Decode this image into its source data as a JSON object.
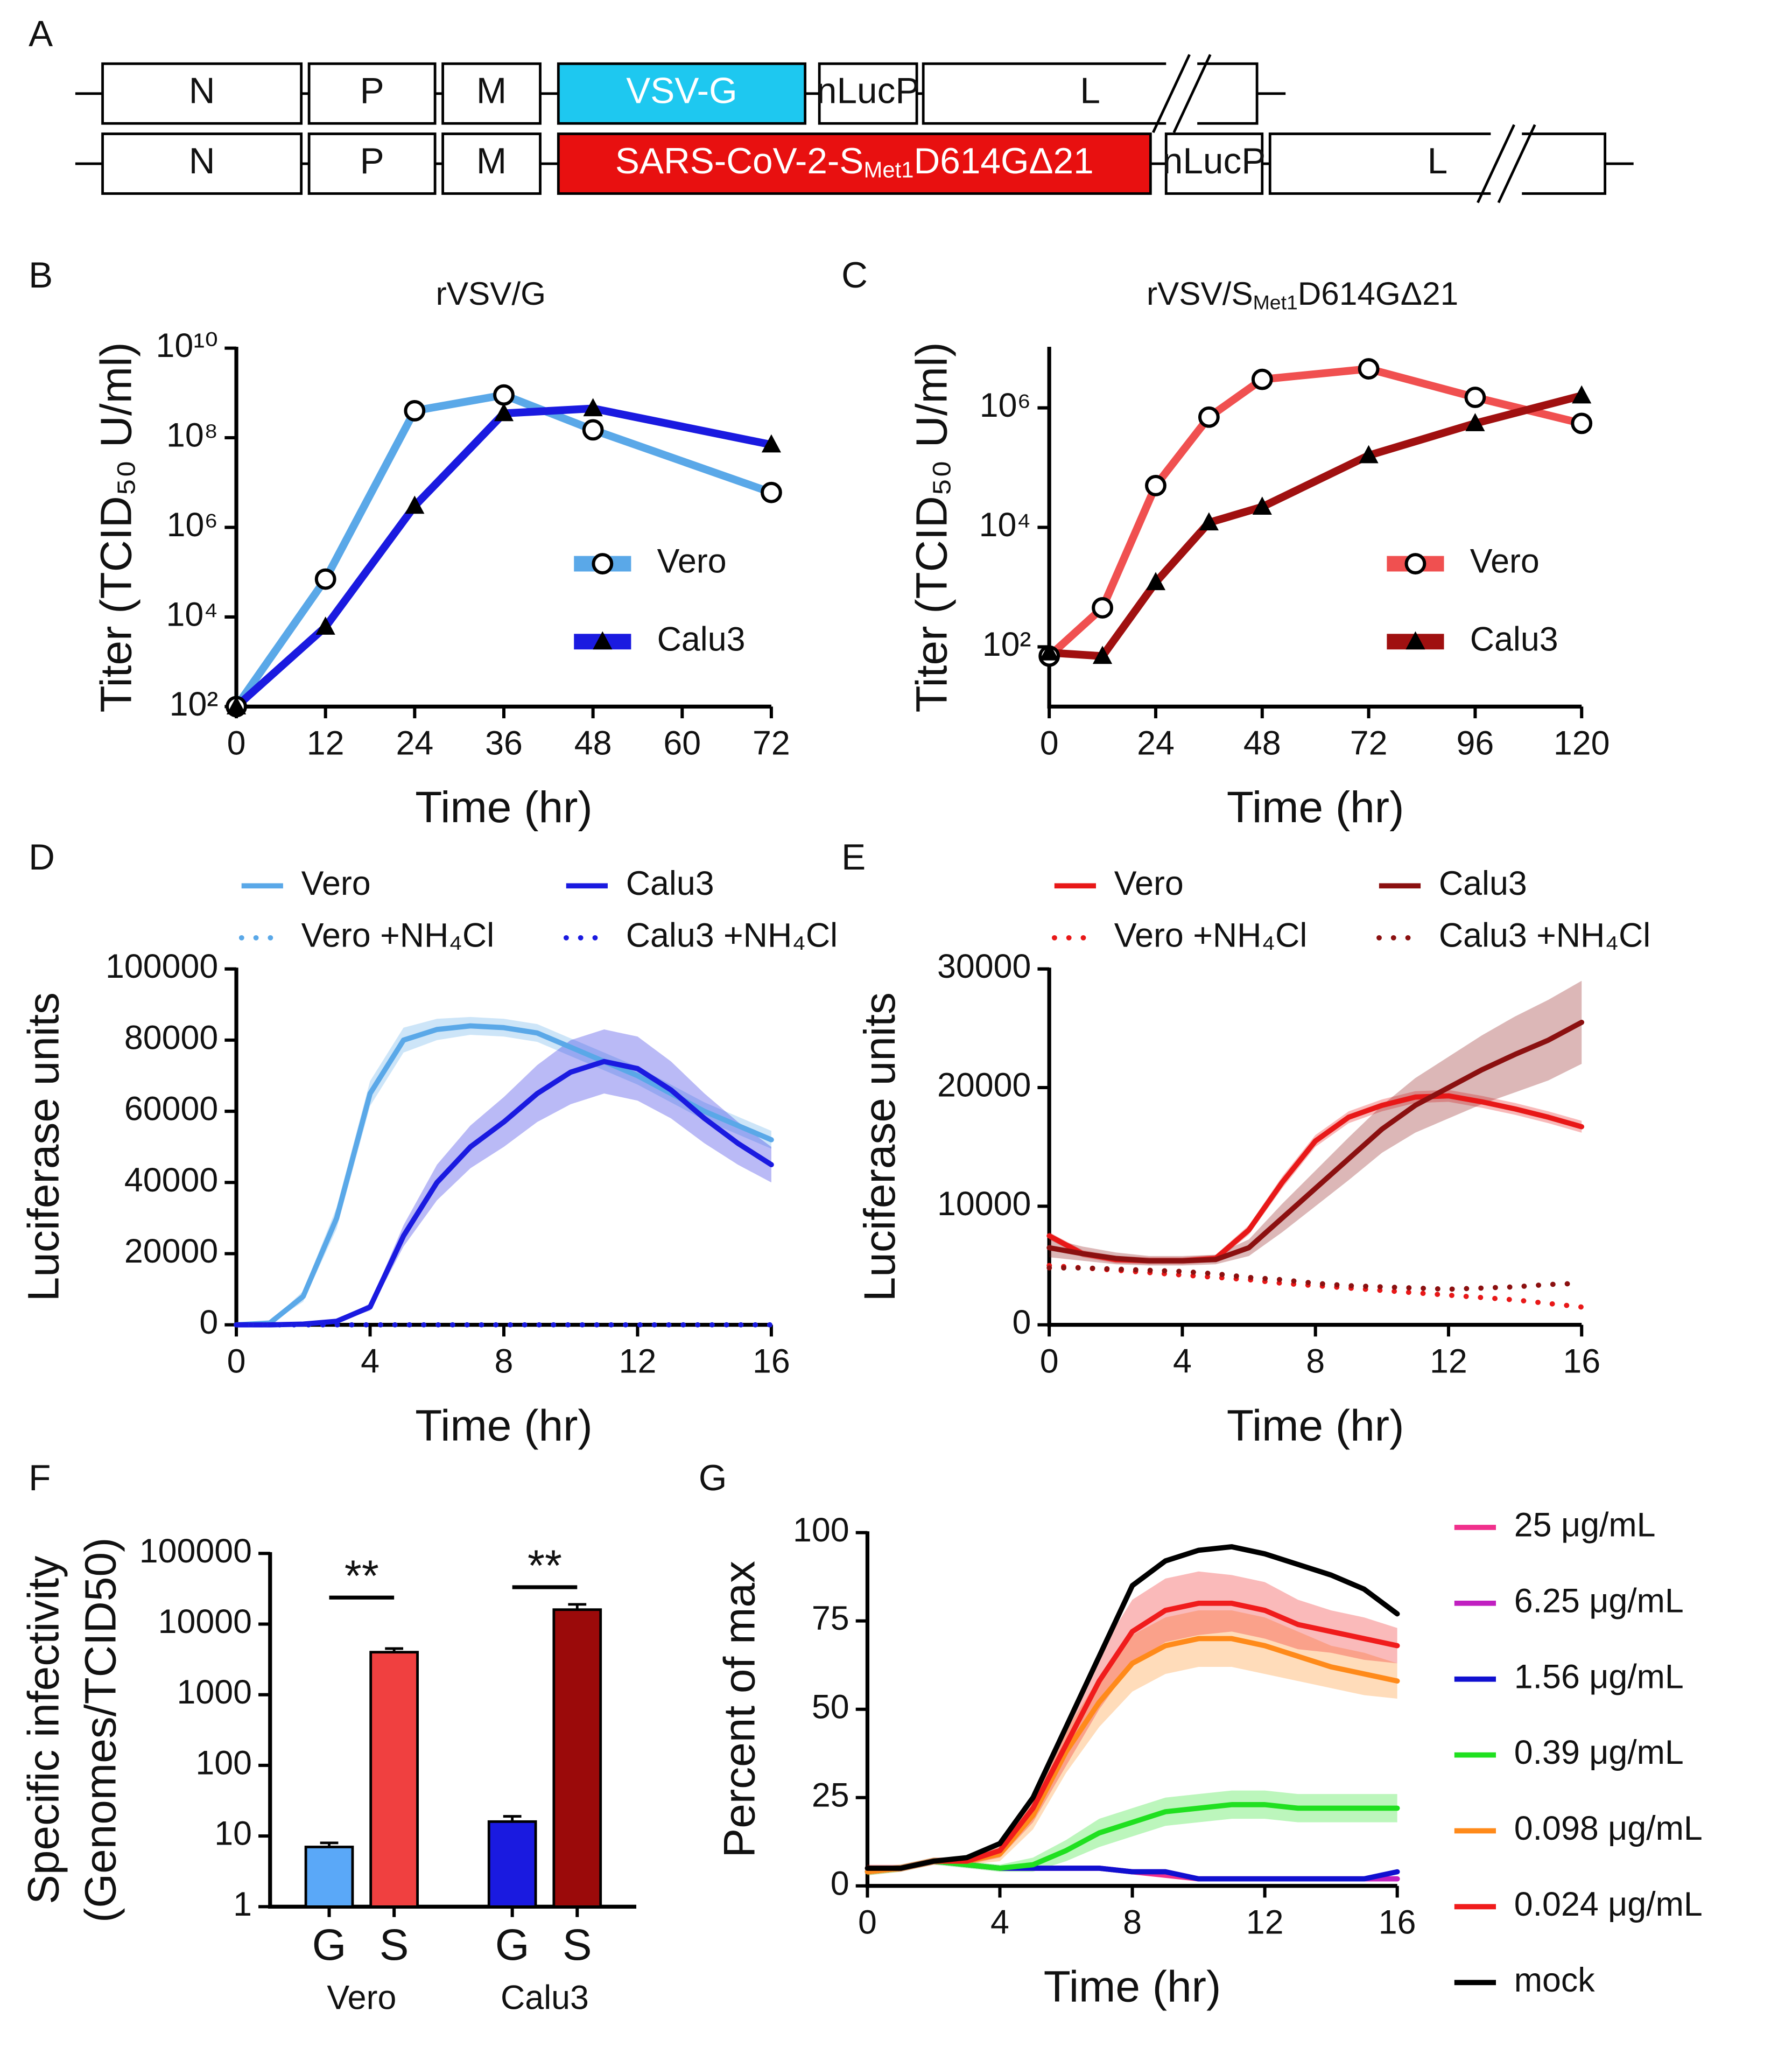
{
  "panel_a": {
    "label": "A",
    "rows": [
      {
        "genes": [
          {
            "text": "N"
          },
          {
            "text": "P"
          },
          {
            "text": "M"
          },
          {
            "text": "VSV-G"
          },
          {
            "text": "nLucP"
          },
          {
            "text": "L"
          }
        ]
      },
      {
        "genes": [
          {
            "text": "N"
          },
          {
            "text": "P"
          },
          {
            "text": "M"
          },
          {
            "runs": [
              {
                "text": "SARS-CoV-2-S"
              },
              {
                "text": "Met1",
                "sub": true
              },
              {
                "text": "D614GΔ21"
              }
            ]
          },
          {
            "text": "nLucP"
          },
          {
            "text": "L"
          }
        ]
      }
    ]
  },
  "chart_data": [
    {
      "type": "line",
      "label": "B",
      "title": "rVSV/G",
      "xlabel": "Time (hr)",
      "ylabel": "Titer (TCID₅₀ U/ml)",
      "log_scale": true,
      "legend": "center-right",
      "grid": false,
      "x": [
        0,
        12,
        24,
        36,
        48,
        72
      ],
      "xlim": [
        0,
        72
      ],
      "xticks": [
        0,
        12,
        24,
        36,
        48,
        60,
        72
      ],
      "ylim": [
        100,
        10000000000
      ],
      "yticks": [
        {
          "value": 100,
          "label": "10²"
        },
        {
          "value": 10000,
          "label": "10⁴"
        },
        {
          "value": 1000000,
          "label": "10⁶"
        },
        {
          "value": 100000000,
          "label": "10⁸"
        },
        {
          "value": 10000000000,
          "label": "10¹⁰"
        }
      ],
      "series": [
        {
          "name": "Vero",
          "color": "#5aa8e8",
          "marker": "open-circle",
          "values": [
            100,
            70000,
            400000000,
            900000000,
            150000000,
            6000000
          ]
        },
        {
          "name": "Calu3",
          "color": "#1a1ae0",
          "marker": "triangle",
          "values": [
            100,
            6000,
            3000000,
            350000000,
            450000000,
            70000000
          ]
        }
      ]
    },
    {
      "type": "line",
      "label": "C",
      "title": [
        {
          "text": "rVSV/S"
        },
        {
          "text": "Met1",
          "sub": true
        },
        {
          "text": "D614GΔ21"
        }
      ],
      "xlabel": "Time (hr)",
      "ylabel": "Titer (TCID₅₀ U/ml)",
      "log_scale": true,
      "legend": "center-right",
      "grid": false,
      "x": [
        0,
        12,
        24,
        36,
        48,
        72,
        96,
        120
      ],
      "xlim": [
        0,
        120
      ],
      "xticks": [
        0,
        24,
        48,
        72,
        96,
        120
      ],
      "ylim": [
        10,
        10000000
      ],
      "yticks": [
        {
          "value": 100,
          "label": "10²"
        },
        {
          "value": 10000,
          "label": "10⁴"
        },
        {
          "value": 1000000,
          "label": "10⁶"
        }
      ],
      "series": [
        {
          "name": "Vero",
          "color": "#f05050",
          "marker": "open-circle",
          "values": [
            70,
            450,
            50000,
            700000,
            3000000,
            4500000,
            1500000,
            550000
          ]
        },
        {
          "name": "Calu3",
          "color": "#a01010",
          "marker": "triangle",
          "values": [
            80,
            70,
            1200,
            12000,
            22000,
            160000,
            550000,
            1600000
          ]
        }
      ]
    },
    {
      "type": "line",
      "label": "D",
      "xlabel": "Time (hr)",
      "ylabel": "Luciferase units",
      "log_scale": false,
      "legend": "top",
      "grid": false,
      "x": [
        0,
        1,
        2,
        3,
        4,
        5,
        6,
        7,
        8,
        9,
        10,
        11,
        12,
        13,
        14,
        15,
        16
      ],
      "xlim": [
        0,
        16
      ],
      "xticks": [
        0,
        4,
        8,
        12,
        16
      ],
      "ylim": [
        0,
        100000
      ],
      "yticks": [
        0,
        20000,
        40000,
        60000,
        80000,
        100000
      ],
      "series": [
        {
          "name": "Vero",
          "color": "#5aa8e8",
          "values": [
            0,
            500,
            8000,
            30000,
            65000,
            80000,
            83000,
            84000,
            83500,
            82000,
            78000,
            74000,
            70000,
            65000,
            60000,
            56000,
            52000
          ],
          "errors": [
            0,
            200,
            1500,
            3000,
            3500,
            3500,
            3000,
            2500,
            2500,
            2500,
            2500,
            2500,
            2500,
            2500,
            2500,
            2500,
            2500
          ]
        },
        {
          "name": "Calu3",
          "color": "#1a1ae0",
          "values": [
            0,
            0,
            200,
            1000,
            5000,
            25000,
            40000,
            50000,
            57000,
            65000,
            71000,
            74000,
            72000,
            66000,
            58000,
            51000,
            45000
          ],
          "errors": [
            0,
            0,
            100,
            300,
            1000,
            3000,
            5000,
            6000,
            7000,
            8000,
            9000,
            9000,
            9000,
            8000,
            7000,
            6000,
            5000
          ]
        },
        {
          "name": "Vero +NH₄Cl",
          "color": "#5aa8e8",
          "dash": "dotted",
          "values": [
            0,
            0,
            0,
            0,
            0,
            0,
            0,
            0,
            0,
            0,
            0,
            0,
            0,
            0,
            0,
            0,
            0
          ]
        },
        {
          "name": "Calu3 +NH₄Cl",
          "color": "#1a1ae0",
          "dash": "dotted",
          "values": [
            0,
            0,
            0,
            0,
            0,
            0,
            0,
            0,
            0,
            0,
            0,
            0,
            0,
            0,
            0,
            0,
            0
          ]
        }
      ]
    },
    {
      "type": "line",
      "label": "E",
      "xlabel": "Time (hr)",
      "ylabel": "Luciferase units",
      "log_scale": false,
      "legend": "top",
      "grid": false,
      "x": [
        0,
        1,
        2,
        3,
        4,
        5,
        6,
        7,
        8,
        9,
        10,
        11,
        12,
        13,
        14,
        15,
        16
      ],
      "xlim": [
        0,
        16
      ],
      "xticks": [
        0,
        4,
        8,
        12,
        16
      ],
      "ylim": [
        0,
        30000
      ],
      "yticks": [
        0,
        10000,
        20000,
        30000
      ],
      "series": [
        {
          "name": "Vero",
          "color": "#e81818",
          "values": [
            7500,
            6000,
            5500,
            5400,
            5400,
            5600,
            8000,
            12000,
            15500,
            17500,
            18500,
            19200,
            19300,
            18800,
            18200,
            17500,
            16700
          ],
          "errors": [
            300,
            300,
            300,
            300,
            300,
            300,
            400,
            500,
            500,
            500,
            500,
            500,
            500,
            500,
            500,
            500,
            500
          ]
        },
        {
          "name": "Calu3",
          "color": "#8b1010",
          "values": [
            6500,
            6000,
            5600,
            5400,
            5400,
            5500,
            6500,
            9000,
            11500,
            14000,
            16500,
            18500,
            20000,
            21500,
            22800,
            24000,
            25500
          ],
          "errors": [
            800,
            600,
            500,
            400,
            400,
            400,
            700,
            1200,
            1500,
            1800,
            2000,
            2300,
            2600,
            2900,
            3200,
            3400,
            3500
          ]
        },
        {
          "name": "Vero +NH₄Cl",
          "color": "#e81818",
          "dash": "dotted",
          "values": [
            5000,
            4800,
            4600,
            4400,
            4200,
            4000,
            3800,
            3500,
            3300,
            3100,
            2900,
            2700,
            2500,
            2300,
            2100,
            1800,
            1500
          ]
        },
        {
          "name": "Calu3 +NH₄Cl",
          "color": "#8b1010",
          "dash": "dotted",
          "values": [
            4800,
            4800,
            4700,
            4600,
            4500,
            4300,
            4000,
            3800,
            3500,
            3300,
            3200,
            3100,
            3000,
            3100,
            3200,
            3400,
            3500
          ]
        }
      ]
    },
    {
      "type": "bar",
      "label": "F",
      "ylabel": [
        "Specific infectivity",
        "(Genomes/TCID50)"
      ],
      "log_scale": true,
      "categories": [
        "G",
        "S",
        "G",
        "S"
      ],
      "groups": [
        "Vero",
        "Calu3"
      ],
      "annotations": [
        "**",
        "**"
      ],
      "values": [
        7,
        4000,
        16,
        16000
      ],
      "errors": [
        1,
        500,
        3,
        3000
      ],
      "colors": [
        "#5aa8f8",
        "#f04040",
        "#1a1ae0",
        "#9b0a0a"
      ],
      "ylim": [
        1,
        100000
      ],
      "yticks": [
        1,
        10,
        100,
        1000,
        10000,
        100000
      ]
    },
    {
      "type": "line",
      "label": "G",
      "xlabel": "Time (hr)",
      "ylabel": "Percent of max",
      "log_scale": false,
      "legend": "right",
      "grid": false,
      "x": [
        0,
        1,
        2,
        3,
        4,
        5,
        6,
        7,
        8,
        9,
        10,
        11,
        12,
        13,
        14,
        15,
        16
      ],
      "xlim": [
        0,
        16
      ],
      "xticks": [
        0,
        4,
        8,
        12,
        16
      ],
      "ylim": [
        0,
        100
      ],
      "yticks": [
        0,
        25,
        50,
        75,
        100
      ],
      "series": [
        {
          "name": "25 μg/mL",
          "color": "#f0308c",
          "values": [
            4,
            5,
            7,
            6,
            5,
            5,
            5,
            5,
            4,
            3,
            2,
            2,
            2,
            2,
            2,
            2,
            2
          ]
        },
        {
          "name": "6.25 μg/mL",
          "color": "#c020c0",
          "values": [
            4,
            5,
            7,
            6,
            5,
            5,
            5,
            5,
            4,
            4,
            2,
            2,
            2,
            2,
            2,
            2,
            2
          ]
        },
        {
          "name": "1.56 μg/mL",
          "color": "#1010d0",
          "values": [
            4,
            5,
            7,
            6,
            5,
            5,
            5,
            5,
            4,
            4,
            2,
            2,
            2,
            2,
            2,
            2,
            4
          ]
        },
        {
          "name": "0.39 μg/mL",
          "color": "#20e020",
          "values": [
            4,
            5,
            7,
            6,
            5,
            6,
            10,
            15,
            18,
            21,
            22,
            23,
            23,
            22,
            22,
            22,
            22
          ],
          "errors": [
            1,
            1,
            1,
            1,
            1,
            2,
            3,
            4,
            4,
            4,
            4,
            4,
            4,
            4,
            4,
            4,
            4
          ]
        },
        {
          "name": "0.098 μg/mL",
          "color": "#ff8a1a",
          "values": [
            4,
            5,
            7,
            7,
            9,
            20,
            38,
            52,
            63,
            68,
            70,
            70,
            68,
            65,
            62,
            60,
            58
          ],
          "errors": [
            1,
            1,
            1,
            1,
            2,
            4,
            6,
            7,
            8,
            8,
            8,
            8,
            8,
            7,
            6,
            6,
            5
          ]
        },
        {
          "name": "0.024 μg/mL",
          "color": "#f01c1c",
          "values": [
            5,
            5,
            7,
            7,
            10,
            22,
            40,
            58,
            72,
            78,
            80,
            80,
            78,
            74,
            72,
            70,
            68
          ],
          "errors": [
            1,
            1,
            1,
            1,
            2,
            4,
            6,
            8,
            9,
            9,
            9,
            8,
            8,
            7,
            6,
            6,
            5
          ]
        },
        {
          "name": "mock",
          "color": "#000000",
          "values": [
            5,
            5,
            7,
            8,
            12,
            25,
            45,
            65,
            85,
            92,
            95,
            96,
            94,
            91,
            88,
            84,
            77
          ]
        }
      ]
    }
  ]
}
